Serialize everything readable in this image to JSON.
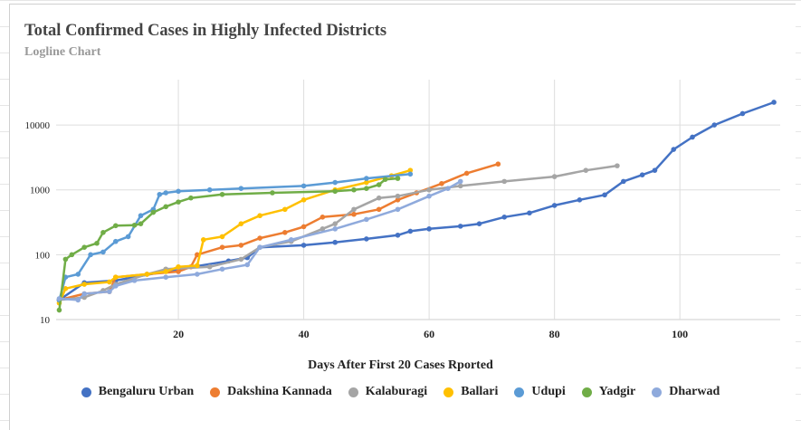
{
  "chart_data": {
    "type": "line",
    "title": "Total Confirmed Cases in Highly Infected Districts",
    "subtitle": "Logline Chart",
    "xlabel": "Days After First 20 Cases Rported",
    "ylabel": "",
    "xlim": [
      0.5,
      116
    ],
    "ylim": [
      10,
      50000
    ],
    "yscale": "log",
    "xticks": [
      20,
      40,
      60,
      80,
      100
    ],
    "yticks": [
      10,
      100,
      1000,
      10000
    ],
    "grid": true,
    "legend": "bottom",
    "series": [
      {
        "name": "Bengaluru Urban",
        "color": "#4472c4",
        "x": [
          1,
          5,
          10,
          20,
          28,
          31,
          33,
          40,
          45,
          50,
          55,
          57,
          60,
          65,
          68,
          72,
          76,
          80,
          84,
          88,
          91,
          94,
          96,
          99,
          102,
          105.5,
          110,
          115
        ],
        "y": [
          20,
          37,
          40,
          60,
          80,
          90,
          130,
          140,
          155,
          175,
          200,
          230,
          250,
          275,
          300,
          380,
          440,
          575,
          700,
          835,
          1350,
          1700,
          2000,
          4200,
          6500,
          10000,
          15000,
          22400
        ]
      },
      {
        "name": "Dakshina Kannada",
        "color": "#ed7d31",
        "x": [
          1,
          5,
          9,
          10,
          15,
          20,
          22,
          23,
          27,
          30,
          33,
          37,
          40,
          43,
          48,
          52,
          55,
          58,
          62,
          66,
          71
        ],
        "y": [
          20,
          25,
          27,
          45,
          50,
          55,
          65,
          100,
          130,
          140,
          180,
          220,
          270,
          380,
          420,
          500,
          700,
          900,
          1250,
          1800,
          2500
        ]
      },
      {
        "name": "Kalaburagi",
        "color": "#a5a5a5",
        "x": [
          1,
          5,
          8,
          10,
          15,
          18,
          25,
          30,
          33,
          38,
          43,
          45,
          48,
          52,
          55,
          60,
          65,
          72,
          80,
          85,
          90
        ],
        "y": [
          20,
          22,
          28,
          35,
          50,
          60,
          65,
          85,
          130,
          160,
          250,
          300,
          500,
          750,
          800,
          1000,
          1150,
          1350,
          1600,
          2000,
          2350
        ]
      },
      {
        "name": "Ballari",
        "color": "#ffc000",
        "x": [
          1,
          2,
          5,
          9,
          10,
          15,
          18,
          20,
          23,
          24,
          27,
          30,
          33,
          37,
          40,
          45,
          50,
          54,
          57
        ],
        "y": [
          18,
          30,
          35,
          38,
          45,
          50,
          55,
          65,
          68,
          170,
          190,
          300,
          400,
          500,
          700,
          1000,
          1300,
          1650,
          2000
        ]
      },
      {
        "name": "Udupi",
        "color": "#5b9bd5",
        "x": [
          1,
          2,
          4,
          6,
          8,
          10,
          12,
          14,
          16,
          17,
          18,
          20,
          25,
          30,
          40,
          45,
          50,
          57
        ],
        "y": [
          20,
          45,
          50,
          100,
          110,
          160,
          190,
          400,
          500,
          850,
          900,
          950,
          1000,
          1050,
          1150,
          1300,
          1500,
          1750
        ]
      },
      {
        "name": "Yadgir",
        "color": "#70ad47",
        "x": [
          1,
          2,
          3,
          5,
          7,
          8,
          10,
          13,
          14,
          16,
          18,
          20,
          22,
          27,
          35,
          45,
          48,
          50,
          52,
          53,
          55
        ],
        "y": [
          14,
          85,
          100,
          130,
          150,
          220,
          280,
          285,
          300,
          450,
          550,
          650,
          750,
          850,
          900,
          950,
          1000,
          1050,
          1200,
          1450,
          1500
        ]
      },
      {
        "name": "Dharwad",
        "color": "#8faadc",
        "x": [
          1,
          4,
          5,
          9,
          10,
          13,
          18,
          23,
          27,
          31,
          33,
          38,
          45,
          50,
          55,
          60,
          63,
          65
        ],
        "y": [
          21,
          20,
          25,
          27,
          33,
          40,
          45,
          50,
          60,
          70,
          130,
          170,
          250,
          350,
          500,
          800,
          1050,
          1350
        ]
      }
    ]
  }
}
